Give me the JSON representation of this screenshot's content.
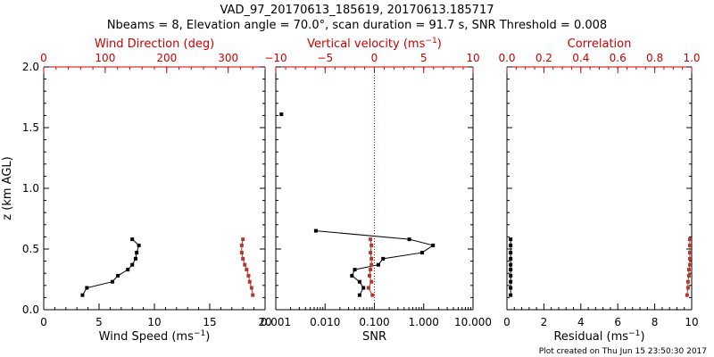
{
  "page": {
    "title": "VAD_97_20170613_185619, 20170613.185717",
    "subtitle": "Nbeams = 8, Elevation angle = 70.0°, scan duration = 91.7 s, SNR Threshold = 0.008",
    "footer": "Plot created on Thu Jun 15 23:50:30 2017",
    "colors": {
      "black": "#000000",
      "red": "#cc0000",
      "brown": "#b03a2e"
    }
  },
  "chart_data": [
    {
      "type": "line",
      "id": "wind",
      "xlabel": "Wind Speed (ms",
      "xlabel_sup": "−1",
      "xlabel_end": ")",
      "top_xlabel": "Wind Direction (deg)",
      "ylabel": "z (km AGL)",
      "xlim": [
        0,
        20
      ],
      "top_xlim": [
        0,
        360
      ],
      "ylim": [
        0,
        2
      ],
      "x_ticks": [
        "0",
        "5",
        "10",
        "15",
        "20"
      ],
      "top_ticks": [
        "0",
        "100",
        "200",
        "300"
      ],
      "y_ticks": [
        "0.0",
        "0.5",
        "1.0",
        "1.5",
        "2.0"
      ],
      "series": [
        {
          "axis": "bottom",
          "color": "#000000",
          "z": [
            0.12,
            0.18,
            0.23,
            0.28,
            0.33,
            0.37,
            0.42,
            0.47,
            0.53,
            0.58
          ],
          "values": [
            3.5,
            3.9,
            6.2,
            6.7,
            7.6,
            8.0,
            8.3,
            8.4,
            8.6,
            8.0
          ]
        },
        {
          "axis": "top",
          "color": "#b03a2e",
          "z": [
            0.12,
            0.18,
            0.23,
            0.28,
            0.33,
            0.37,
            0.42,
            0.47,
            0.53,
            0.58
          ],
          "values": [
            340,
            338,
            335,
            333,
            330,
            327,
            324,
            322,
            322,
            324
          ]
        }
      ]
    },
    {
      "type": "line",
      "id": "snr",
      "xlabel": "SNR",
      "top_xlabel": "Vertical velocity (ms",
      "top_xlabel_sup": "−1",
      "top_xlabel_end": ")",
      "xscale": "log",
      "xlim": [
        0.001,
        10
      ],
      "top_xlim": [
        -10,
        10
      ],
      "ylim": [
        0,
        2
      ],
      "x_ticks": [
        "0.001",
        "0.010",
        "0.100",
        "1.000",
        "10.000"
      ],
      "top_ticks": [
        "−10",
        "−5",
        "0",
        "5",
        "10"
      ],
      "threshold_line": 0,
      "series": [
        {
          "axis": "bottom",
          "color": "#000000",
          "z": [
            0.12,
            0.18,
            0.23,
            0.28,
            0.33,
            0.37,
            0.42,
            0.47,
            0.53,
            0.58,
            0.65,
            1.61
          ],
          "values": [
            0.05,
            0.06,
            0.05,
            0.035,
            0.04,
            0.12,
            0.15,
            0.93,
            1.55,
            0.51,
            0.0065,
            0.0013
          ]
        },
        {
          "axis": "top",
          "color": "#b03a2e",
          "z": [
            0.12,
            0.18,
            0.23,
            0.28,
            0.33,
            0.37,
            0.42,
            0.47,
            0.53,
            0.58
          ],
          "values": [
            -0.2,
            -0.6,
            -0.3,
            -0.5,
            -0.4,
            -0.3,
            -0.3,
            -0.4,
            -0.3,
            -0.4
          ]
        }
      ]
    },
    {
      "type": "line",
      "id": "residual",
      "xlabel": "Residual (ms",
      "xlabel_sup": "−1",
      "xlabel_end": ")",
      "top_xlabel": "Correlation",
      "xlim": [
        0,
        10
      ],
      "top_xlim": [
        0,
        1
      ],
      "ylim": [
        0,
        2
      ],
      "x_ticks": [
        "0",
        "2",
        "4",
        "6",
        "8",
        "10"
      ],
      "top_ticks": [
        "0.0",
        "0.2",
        "0.4",
        "0.6",
        "0.8",
        "1.0"
      ],
      "series": [
        {
          "axis": "bottom",
          "color": "#000000",
          "z": [
            0.12,
            0.18,
            0.23,
            0.28,
            0.33,
            0.37,
            0.42,
            0.47,
            0.53,
            0.58
          ],
          "values": [
            0.2,
            0.2,
            0.2,
            0.2,
            0.2,
            0.2,
            0.2,
            0.2,
            0.2,
            0.2
          ]
        },
        {
          "axis": "top",
          "color": "#b03a2e",
          "z": [
            0.12,
            0.18,
            0.23,
            0.28,
            0.33,
            0.37,
            0.42,
            0.47,
            0.53,
            0.58
          ],
          "values": [
            0.975,
            0.98,
            0.98,
            0.985,
            0.985,
            0.99,
            0.99,
            0.99,
            0.99,
            0.99
          ]
        }
      ]
    }
  ]
}
